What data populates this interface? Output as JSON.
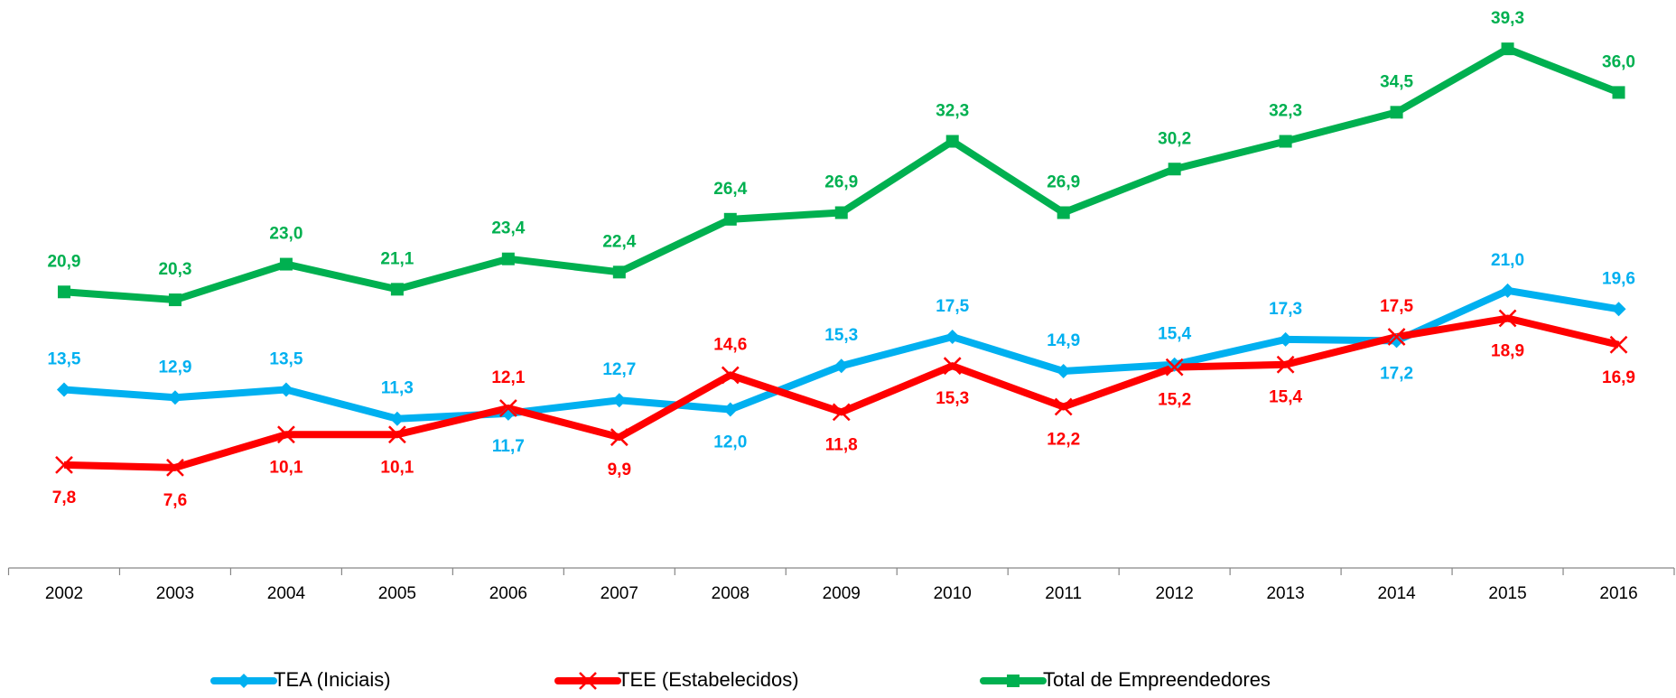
{
  "chart_data": {
    "type": "line",
    "categories": [
      "2002",
      "2003",
      "2004",
      "2005",
      "2006",
      "2007",
      "2008",
      "2009",
      "2010",
      "2011",
      "2012",
      "2013",
      "2014",
      "2015",
      "2016"
    ],
    "ylim": [
      0,
      43
    ],
    "legend": "bottom",
    "series": [
      {
        "name": "TEA (Iniciais)",
        "color": "#00b0f0",
        "marker": "diamond",
        "values": [
          13.5,
          12.9,
          13.5,
          11.3,
          11.7,
          12.7,
          12.0,
          15.3,
          17.5,
          14.9,
          15.4,
          17.3,
          17.2,
          21.0,
          19.6
        ],
        "value_labels": [
          "13,5",
          "12,9",
          "13,5",
          "11,3",
          "11,7",
          "12,7",
          "12,0",
          "15,3",
          "17,5",
          "14,9",
          "15,4",
          "17,3",
          "17,2",
          "21,0",
          "19,6"
        ]
      },
      {
        "name": "TEE (Estabelecidos)",
        "color": "#ff0000",
        "marker": "x",
        "values": [
          7.8,
          7.6,
          10.1,
          10.1,
          12.1,
          9.9,
          14.6,
          11.8,
          15.3,
          12.2,
          15.2,
          15.4,
          17.5,
          18.9,
          16.9
        ],
        "value_labels": [
          "7,8",
          "7,6",
          "10,1",
          "10,1",
          "12,1",
          "9,9",
          "14,6",
          "11,8",
          "15,3",
          "12,2",
          "15,2",
          "15,4",
          "17,5",
          "18,9",
          "16,9"
        ]
      },
      {
        "name": "Total de Empreendedores",
        "color": "#00b050",
        "marker": "square",
        "values": [
          20.9,
          20.3,
          23.0,
          21.1,
          23.4,
          22.4,
          26.4,
          26.9,
          32.3,
          26.9,
          30.2,
          32.3,
          34.5,
          39.3,
          36.0
        ],
        "value_labels": [
          "20,9",
          "20,3",
          "23,0",
          "21,1",
          "23,4",
          "22,4",
          "26,4",
          "26,9",
          "32,3",
          "26,9",
          "30,2",
          "32,3",
          "34,5",
          "39,3",
          "36,0"
        ]
      }
    ]
  }
}
